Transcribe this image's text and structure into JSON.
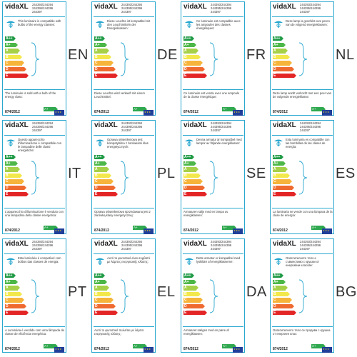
{
  "colors": {
    "frame": "#2aa7cf",
    "bar_colors": [
      "#1f9a45",
      "#4cb748",
      "#a6d048",
      "#f3e84b",
      "#f6b43b",
      "#ef6a2f",
      "#e32526"
    ],
    "eu_blue": "#1f3f9a"
  },
  "common": {
    "brand": "vidaXL",
    "models_line1": "244393/244394",
    "models_line2": "244395/244396",
    "models_line3": "244397",
    "regulation": "874/2012",
    "energy_classes": [
      "A++",
      "A+",
      "A",
      "B",
      "C",
      "D",
      "E"
    ],
    "lamp_class": "A+",
    "icons": [
      "lamp-icon",
      "brace-icon",
      "eu-flag-icon"
    ]
  },
  "labels": [
    {
      "lang": "EN",
      "top_text": "This luminaire is compatible with bulbs of the energy classes:",
      "bottom_text": "The luminaire is sold with a bulb of the energy class:"
    },
    {
      "lang": "DE",
      "top_text": "Diese Leuchte ist kompatibel mit den Leuchtmitteln der Energieklassen:",
      "bottom_text": "Diese Leuchte wird verkauft mit einem Leuchtmittel:"
    },
    {
      "lang": "FR",
      "top_text": "Ce luminaire est compatible avec les ampoules des classes énergétiques:",
      "bottom_text": "Ce luminaire est vendu avec une ampoule de la classe énergétique:"
    },
    {
      "lang": "NL",
      "top_text": "Deze lamp is geschikt voor peren van de volgend energieklassen:",
      "bottom_text": "Deze lamp wordt verkocht met een peer van de volgende energieklasse:"
    },
    {
      "lang": "IT",
      "top_text": "Questo apparecchio d'illuminazione è compatibile con le lampadine delle classi energetiche:",
      "bottom_text": "L'apparecchio d'illuminazione è venduto con una lampadina della classe energetica:"
    },
    {
      "lang": "PL",
      "top_text": "Oprawa oświetleniowa jest kompatybilna z żarówkami klas energetycznych:",
      "bottom_text": "Oprawa oświetleniowa sprzedawana jest z żarówką klasy energetycznej:"
    },
    {
      "lang": "SE",
      "top_text": "Denna armatur är kompatibel med lampor av följande energiklasser:",
      "bottom_text": "Armaturen säljs med en lampa av energiklassen:"
    },
    {
      "lang": "ES",
      "top_text": "Esta luminaria es compatible con las bombillas de las clases de energía:",
      "bottom_text": "La luminaria se vende con una lámpara de la clase de energía:"
    },
    {
      "lang": "PT",
      "top_text": "Esta luminária é compatível com bolbos das classes de energia:",
      "bottom_text": "A Luminária é vendido com uma lâmpada da classe de eficiência energética:"
    },
    {
      "lang": "EL",
      "top_text": "Αυτό το φωτιστικό είναι συμβατό με λάμπες ενεργειακής κλάσης:",
      "bottom_text": "Αυτό το φωτιστικό πωλείται με λάμπα ενεργειακής κλάσης:"
    },
    {
      "lang": "DA",
      "top_text": "Dette armatur er kompatibel med lyskilder af energiklasserne:",
      "bottom_text": "Armaturet sælges med en pære af energiklassen:"
    },
    {
      "lang": "BG",
      "top_text": "Осветителното тяло е съвместимо с крушки от енергийни класове:",
      "bottom_text": "Осветителното тяло се продава с крушка от енергиен клас:"
    }
  ]
}
